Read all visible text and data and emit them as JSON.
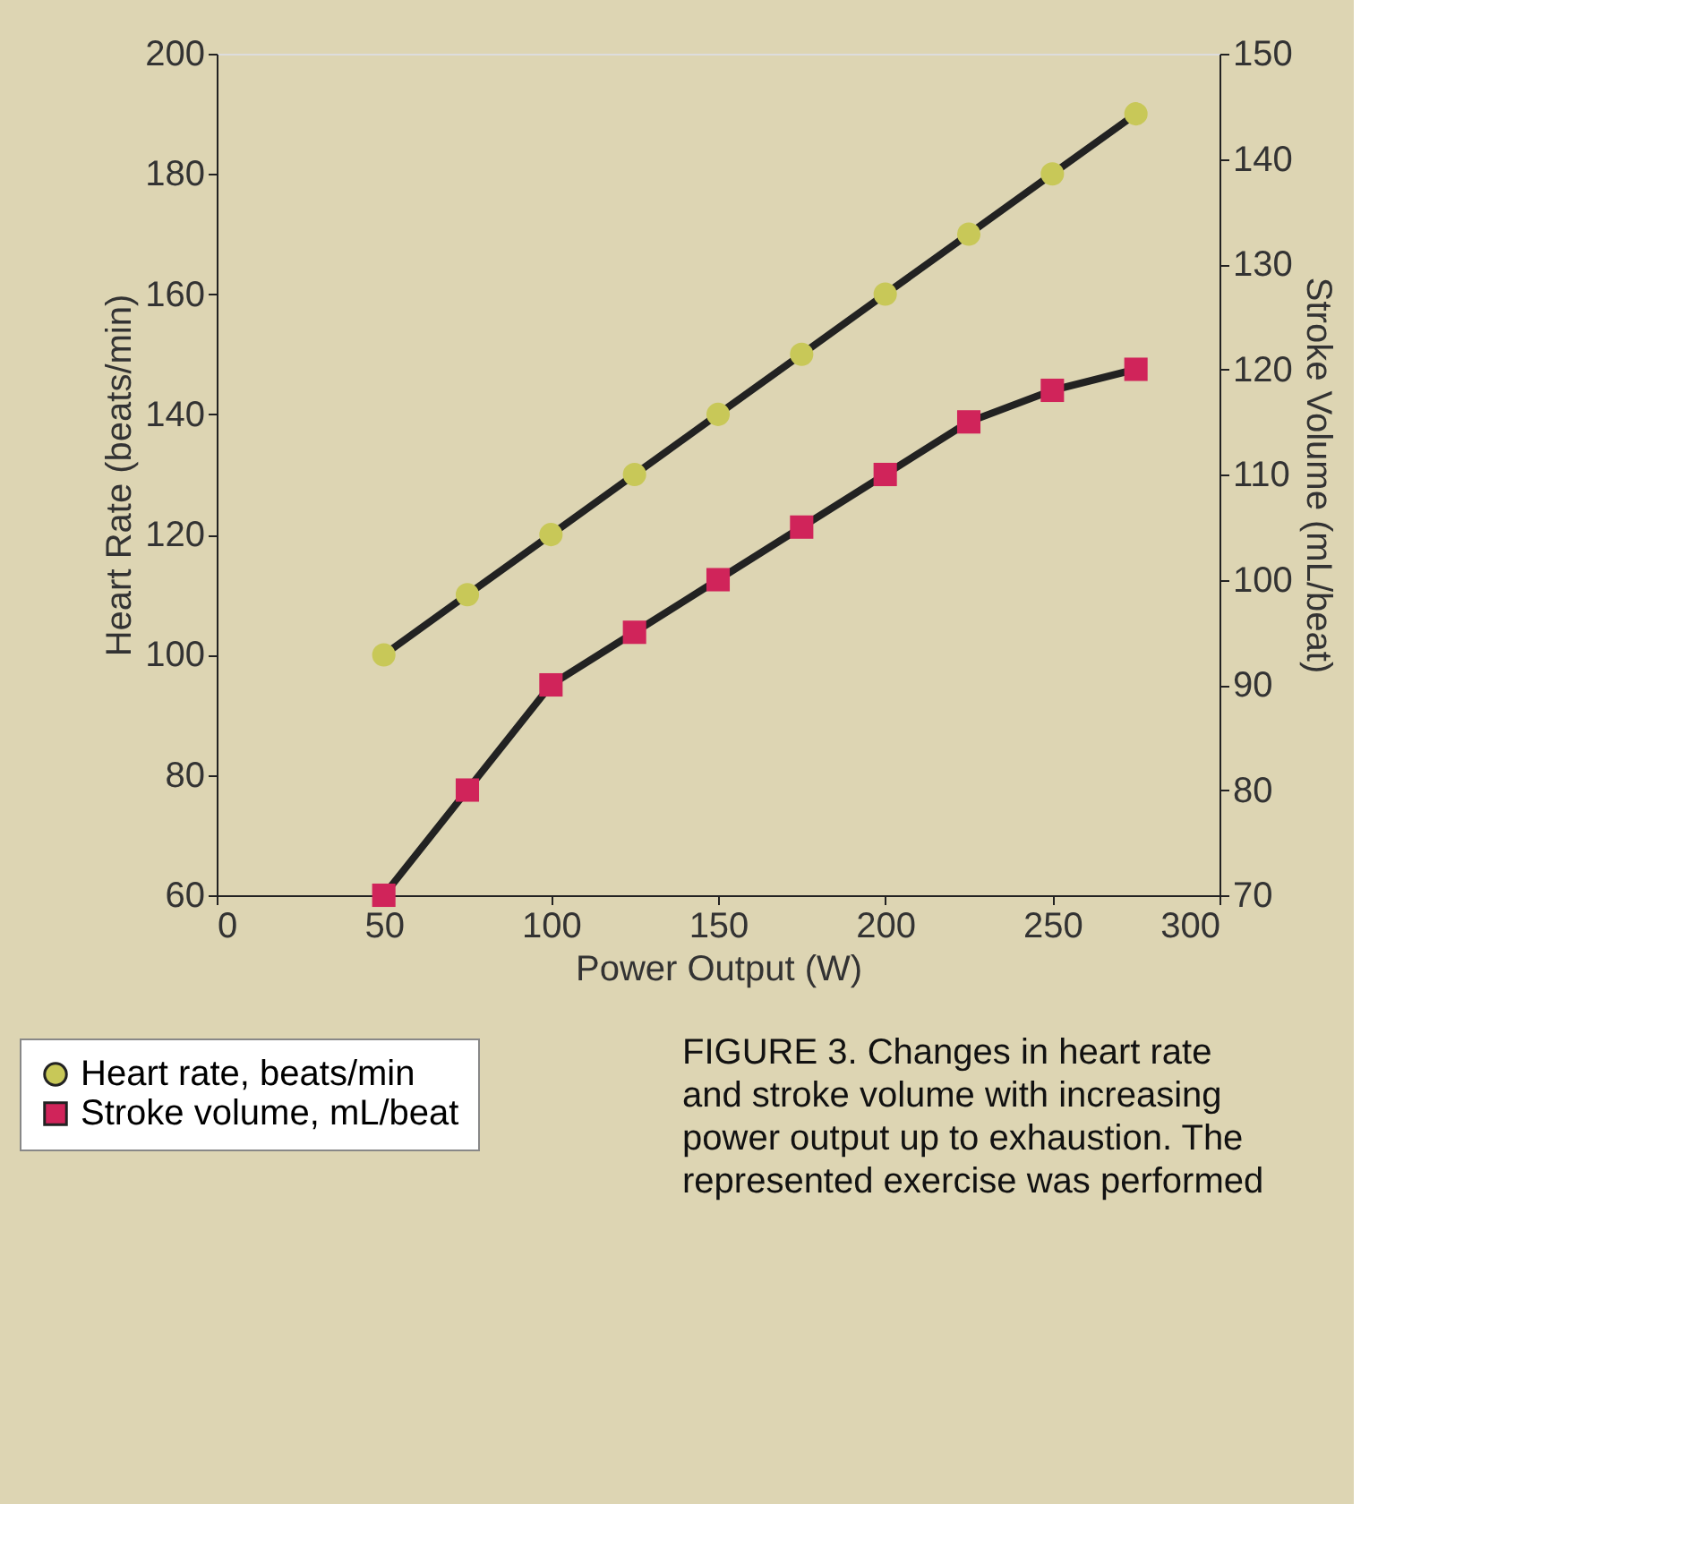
{
  "chart_data": {
    "type": "line",
    "x": [
      50,
      75,
      100,
      125,
      150,
      175,
      200,
      225,
      250,
      275
    ],
    "xlabel": "Power Output (W)",
    "ylabel": "Heart Rate (beats/min)",
    "y2label": "Stroke Volume (mL/beat)",
    "xlim": [
      0,
      300
    ],
    "xticks": [
      0,
      50,
      100,
      150,
      200,
      250,
      300
    ],
    "ylim": [
      60,
      200
    ],
    "yticks": [
      60,
      80,
      100,
      120,
      140,
      160,
      180,
      200
    ],
    "y2lim": [
      70,
      150
    ],
    "y2ticks": [
      70,
      80,
      90,
      100,
      110,
      120,
      130,
      140,
      150
    ],
    "series": [
      {
        "name": "Heart rate, beats/min",
        "color": "#c8c858",
        "marker": "circle",
        "axis": "y",
        "values": [
          100,
          110,
          120,
          130,
          140,
          150,
          160,
          170,
          180,
          190
        ]
      },
      {
        "name": "Stroke volume, mL/beat",
        "color": "#d0245a",
        "marker": "square",
        "axis": "y2",
        "values": [
          70,
          80,
          90,
          95,
          100,
          105,
          110,
          115,
          118,
          120
        ]
      }
    ],
    "grid": false,
    "legend": "bottom left",
    "line_style": "solid",
    "annotations": [
      "FIGURE 3. Changes in heart rate and stroke volume with increasing power output up to exhaustion. The represented exercise was performed"
    ]
  }
}
